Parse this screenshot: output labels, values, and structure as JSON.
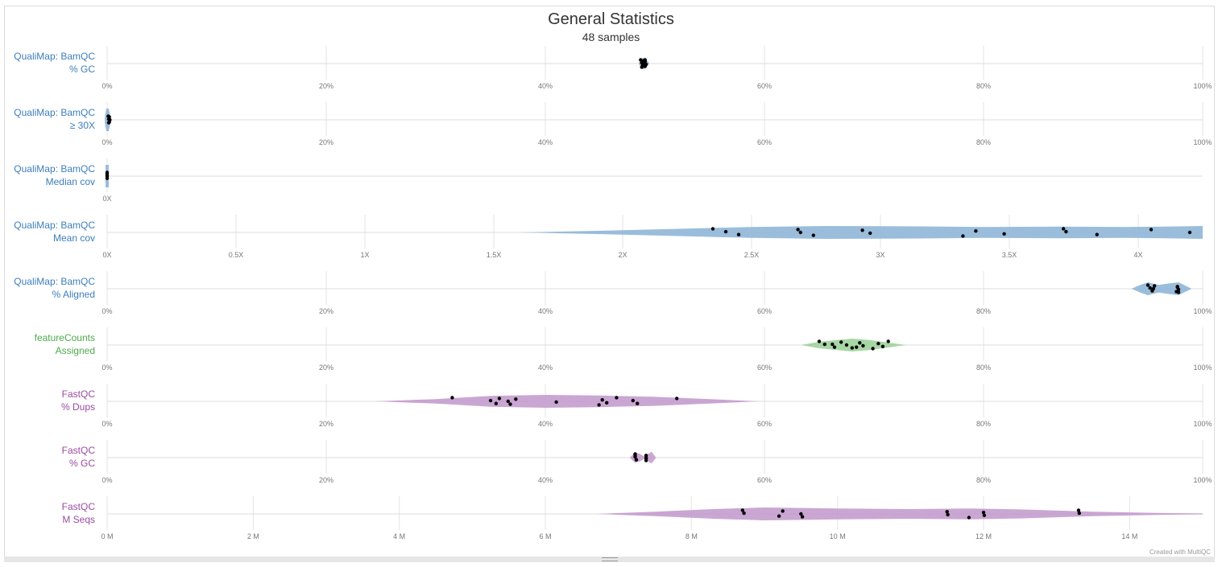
{
  "title": "General Statistics",
  "subtitle": "48 samples",
  "credit": "Created with MultiQC",
  "colors": {
    "qualimap": "#3d7ebb",
    "qualimap_fill": "#8fb6d8",
    "featurecounts": "#4ca94c",
    "featurecounts_fill": "#9fd39b",
    "fastqc": "#9b4ba1",
    "fastqc_fill": "#c49cce"
  },
  "chart_data": {
    "type": "violin",
    "grid": true,
    "rows": [
      {
        "label1": "QualiMap: BamQC",
        "label2": "% GC",
        "color_key": "qualimap",
        "min": 0,
        "max": 100,
        "ticks": [
          "0%",
          "20%",
          "40%",
          "60%",
          "80%",
          "100%"
        ],
        "violin": [
          [
            48.5,
            0
          ],
          [
            48.7,
            0.5
          ],
          [
            48.8,
            0.8
          ],
          [
            49.0,
            0.9
          ],
          [
            49.1,
            0.7
          ],
          [
            49.3,
            0.45
          ],
          [
            49.5,
            0
          ]
        ],
        "points": [
          48.7,
          48.8,
          48.9,
          49.0,
          49.0,
          49.1,
          49.1,
          49.2,
          48.8,
          49.0,
          48.9,
          49.1
        ]
      },
      {
        "label1": "QualiMap: BamQC",
        "label2": "≥ 30X",
        "color_key": "qualimap",
        "min": 0,
        "max": 100,
        "ticks": [
          "0%",
          "20%",
          "40%",
          "60%",
          "80%",
          "100%"
        ],
        "violin": [
          [
            0,
            0
          ],
          [
            0.05,
            0.75
          ],
          [
            0.15,
            1.0
          ],
          [
            0.3,
            0.6
          ],
          [
            0.45,
            0
          ]
        ],
        "points": [
          0.1,
          0.15,
          0.2,
          0.2,
          0.25,
          0.15
        ]
      },
      {
        "label1": "QualiMap: BamQC",
        "label2": "Median cov",
        "color_key": "qualimap",
        "min": 0,
        "max": 0,
        "ticks": [
          "0X"
        ],
        "violin": [
          [
            0,
            0
          ],
          [
            0.01,
            1.0
          ],
          [
            0.02,
            0
          ]
        ],
        "points": [
          0,
          0,
          0,
          0,
          0
        ]
      },
      {
        "label1": "QualiMap: BamQC",
        "label2": "Mean cov",
        "color_key": "qualimap",
        "min": 0,
        "max": 4.25,
        "ticks": [
          "0X",
          "0.5X",
          "1X",
          "1.5X",
          "2X",
          "2.5X",
          "3X",
          "3.5X",
          "4X"
        ],
        "violin": [
          [
            1.6,
            0
          ],
          [
            1.9,
            0.25
          ],
          [
            2.2,
            0.55
          ],
          [
            2.5,
            0.85
          ],
          [
            2.8,
            1.0
          ],
          [
            3.1,
            0.95
          ],
          [
            3.4,
            0.85
          ],
          [
            3.7,
            0.9
          ],
          [
            3.95,
            0.85
          ],
          [
            4.1,
            0.9
          ],
          [
            4.25,
            1.0
          ]
        ],
        "points": [
          2.35,
          2.4,
          2.45,
          2.68,
          2.69,
          2.74,
          2.93,
          2.96,
          3.32,
          3.37,
          3.48,
          3.71,
          3.72,
          3.84,
          4.05,
          4.2
        ]
      },
      {
        "label1": "QualiMap: BamQC",
        "label2": "% Aligned",
        "color_key": "qualimap",
        "min": 0,
        "max": 100,
        "ticks": [
          "0%",
          "20%",
          "40%",
          "60%",
          "80%",
          "100%"
        ],
        "violin": [
          [
            93.5,
            0
          ],
          [
            94.3,
            0.6
          ],
          [
            95.0,
            1.0
          ],
          [
            96.0,
            0.6
          ],
          [
            97.0,
            0.85
          ],
          [
            97.8,
            1.0
          ],
          [
            99.0,
            0
          ]
        ],
        "points": [
          95.0,
          95.2,
          95.4,
          95.6,
          95.5,
          97.6,
          97.7,
          97.8,
          97.8,
          97.7
        ]
      },
      {
        "label1": "featureCounts",
        "label2": "Assigned",
        "color_key": "featurecounts",
        "min": 0,
        "max": 100,
        "ticks": [
          "0%",
          "20%",
          "40%",
          "60%",
          "80%",
          "100%"
        ],
        "violin": [
          [
            63.3,
            0
          ],
          [
            65,
            0.5
          ],
          [
            67,
            0.85
          ],
          [
            68,
            1.0
          ],
          [
            69.5,
            0.8
          ],
          [
            71,
            0.45
          ],
          [
            72.9,
            0
          ]
        ],
        "points": [
          65.0,
          65.5,
          66.4,
          67.0,
          67.5,
          68.0,
          68.7,
          69.0,
          69.9,
          70.4,
          70.8,
          71.3,
          66.2,
          68.4
        ]
      },
      {
        "label1": "FastQC",
        "label2": "% Dups",
        "color_key": "fastqc",
        "min": 0,
        "max": 100,
        "ticks": [
          "0%",
          "20%",
          "40%",
          "60%",
          "80%",
          "100%"
        ],
        "violin": [
          [
            24.5,
            0
          ],
          [
            30,
            0.35
          ],
          [
            35,
            0.85
          ],
          [
            40,
            1.0
          ],
          [
            45,
            0.9
          ],
          [
            50,
            0.7
          ],
          [
            55,
            0.35
          ],
          [
            59.5,
            0
          ]
        ],
        "points": [
          31.5,
          35.0,
          35.5,
          35.8,
          36.6,
          36.8,
          37.3,
          41.0,
          44.9,
          45.2,
          45.6,
          46.5,
          48.0,
          48.4,
          52.0
        ]
      },
      {
        "label1": "FastQC",
        "label2": "% GC",
        "color_key": "fastqc",
        "min": 0,
        "max": 100,
        "ticks": [
          "0%",
          "20%",
          "40%",
          "60%",
          "80%",
          "100%"
        ],
        "violin": [
          [
            47.7,
            0
          ],
          [
            48.2,
            0.8
          ],
          [
            48.6,
            0.6
          ],
          [
            49.0,
            0.2
          ],
          [
            49.4,
            0.6
          ],
          [
            49.7,
            0.9
          ],
          [
            50.1,
            0
          ]
        ],
        "points": [
          48.2,
          48.2,
          48.3,
          48.2,
          49.2,
          49.2,
          49.2,
          49.2
        ]
      },
      {
        "label1": "FastQC",
        "label2": "M Seqs",
        "color_key": "fastqc",
        "min": 0,
        "max": 15,
        "ticks": [
          "0 M",
          "2 M",
          "4 M",
          "6 M",
          "8 M",
          "10 M",
          "12 M",
          "14 M"
        ],
        "violin": [
          [
            6.7,
            0
          ],
          [
            7.5,
            0.35
          ],
          [
            8.3,
            0.75
          ],
          [
            9.0,
            1.0
          ],
          [
            10.0,
            0.85
          ],
          [
            11.0,
            0.75
          ],
          [
            11.8,
            0.85
          ],
          [
            12.5,
            0.7
          ],
          [
            13.5,
            0.35
          ],
          [
            14.5,
            0.12
          ],
          [
            15,
            0.08
          ]
        ],
        "points": [
          8.7,
          8.72,
          9.2,
          9.25,
          9.5,
          9.52,
          11.5,
          11.51,
          11.8,
          12.0,
          12.01,
          13.3,
          13.31
        ]
      }
    ]
  }
}
